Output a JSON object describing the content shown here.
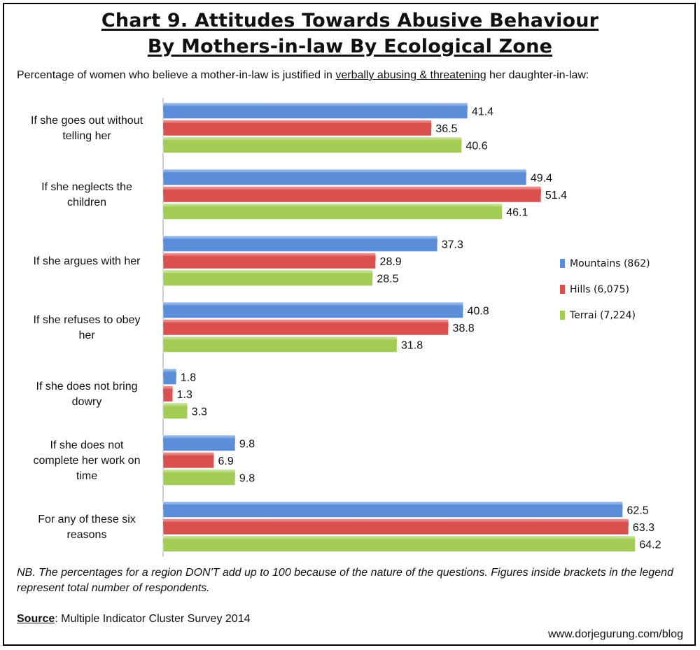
{
  "title_line1": "Chart 9. Attitudes Towards Abusive Behaviour",
  "title_line2": "By Mothers-in-law By Ecological Zone",
  "subtitle_before": "Percentage of women who believe a mother-in-law is justified in ",
  "subtitle_underlined": "verbally abusing & threatening",
  "subtitle_after": " her daughter-in-law:",
  "note": "NB. The percentages for a region DON'T add up to 100 because of the nature of the questions. Figures inside brackets in the legend represent total number of respondents.",
  "source_label": "Source",
  "source_text": ": Multiple Indicator Cluster Survey 2014",
  "website": "www.dorjegurung.com/blog",
  "chart_data": {
    "type": "bar",
    "orientation": "horizontal",
    "categories": [
      [
        "If she goes out without",
        "telling her"
      ],
      [
        "If she neglects the",
        "children"
      ],
      [
        "If she argues with her"
      ],
      [
        "If she refuses to obey",
        "her"
      ],
      [
        "If she does not bring",
        "dowry"
      ],
      [
        "If she does not",
        "complete her work on",
        "time"
      ],
      [
        "For any of these six",
        "reasons"
      ]
    ],
    "series": [
      {
        "name": "Mountains (862)",
        "color": "#5b8ed8",
        "values": [
          41.4,
          49.4,
          37.3,
          40.8,
          1.8,
          9.8,
          62.5
        ]
      },
      {
        "name": "Hills (6,075)",
        "color": "#d9504e",
        "values": [
          36.5,
          51.4,
          28.9,
          38.8,
          1.3,
          6.9,
          63.3
        ]
      },
      {
        "name": "Terrai (7,224)",
        "color": "#a3cc55",
        "values": [
          40.6,
          46.1,
          28.5,
          31.8,
          3.3,
          9.8,
          64.2
        ]
      }
    ],
    "xlim": [
      0,
      65.5
    ],
    "grid": false,
    "legend_position": "right"
  }
}
